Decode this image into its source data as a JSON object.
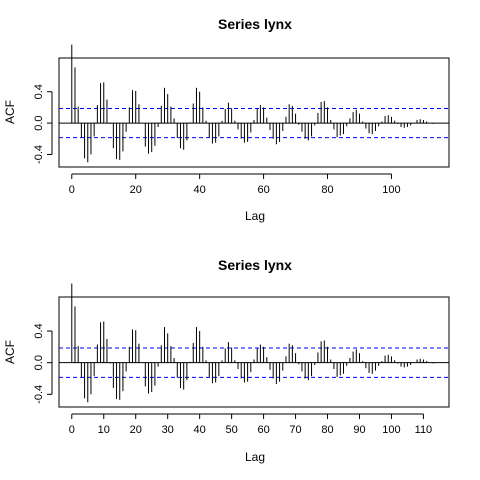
{
  "chart_data": [
    {
      "type": "bar",
      "title": "Series  lynx",
      "xlabel": "Lag",
      "ylabel": "ACF",
      "xlim": [
        -4,
        118
      ],
      "ylim": [
        -0.56,
        0.83
      ],
      "xticks": [
        0,
        20,
        40,
        60,
        80,
        100
      ],
      "yticks": [
        -0.4,
        0.0,
        0.4
      ],
      "ytick_labels": [
        "-0.4",
        "0.0",
        "0.4"
      ],
      "ci": 0.186,
      "ci_color": "#0000ff",
      "lags": [
        0,
        1,
        2,
        3,
        4,
        5,
        6,
        7,
        8,
        9,
        10,
        11,
        12,
        13,
        14,
        15,
        16,
        17,
        18,
        19,
        20,
        21,
        22,
        23,
        24,
        25,
        26,
        27,
        28,
        29,
        30,
        31,
        32,
        33,
        34,
        35,
        36,
        37,
        38,
        39,
        40,
        41,
        42,
        43,
        44,
        45,
        46,
        47,
        48,
        49,
        50,
        51,
        52,
        53,
        54,
        55,
        56,
        57,
        58,
        59,
        60,
        61,
        62,
        63,
        64,
        65,
        66,
        67,
        68,
        69,
        70,
        71,
        72,
        73,
        74,
        75,
        76,
        77,
        78,
        79,
        80,
        81,
        82,
        83,
        84,
        85,
        86,
        87,
        88,
        89,
        90,
        91,
        92,
        93,
        94,
        95,
        96,
        97,
        98,
        99,
        100,
        101,
        102,
        103,
        104,
        105,
        106,
        107,
        108,
        109,
        110,
        111,
        112,
        113
      ],
      "acf": [
        1.0,
        0.71,
        0.21,
        -0.18,
        -0.45,
        -0.5,
        -0.4,
        -0.17,
        0.23,
        0.51,
        0.52,
        0.3,
        -0.01,
        -0.32,
        -0.46,
        -0.47,
        -0.36,
        -0.11,
        0.2,
        0.42,
        0.41,
        0.24,
        0.0,
        -0.3,
        -0.39,
        -0.37,
        -0.29,
        -0.05,
        0.22,
        0.45,
        0.37,
        0.21,
        0.06,
        -0.19,
        -0.32,
        -0.34,
        -0.22,
        0.01,
        0.25,
        0.45,
        0.4,
        0.2,
        0.03,
        -0.18,
        -0.26,
        -0.25,
        -0.17,
        0.03,
        0.18,
        0.26,
        0.19,
        0.03,
        -0.08,
        -0.2,
        -0.25,
        -0.24,
        -0.12,
        0.04,
        0.18,
        0.23,
        0.2,
        0.07,
        -0.09,
        -0.2,
        -0.27,
        -0.24,
        -0.1,
        0.08,
        0.24,
        0.22,
        0.12,
        -0.02,
        -0.11,
        -0.2,
        -0.22,
        -0.17,
        -0.03,
        0.13,
        0.27,
        0.28,
        0.2,
        0.04,
        -0.08,
        -0.18,
        -0.16,
        -0.14,
        -0.04,
        0.06,
        0.14,
        0.17,
        0.12,
        0.02,
        -0.07,
        -0.13,
        -0.14,
        -0.1,
        -0.04,
        0.02,
        0.09,
        0.1,
        0.08,
        0.03,
        -0.01,
        -0.05,
        -0.06,
        -0.05,
        -0.03,
        0.0,
        0.04,
        0.05,
        0.04,
        0.02,
        0.0,
        -0.01
      ]
    },
    {
      "type": "bar",
      "title": "Series  lynx",
      "xlabel": "Lag",
      "ylabel": "ACF",
      "xlim": [
        -4,
        118
      ],
      "ylim": [
        -0.56,
        0.83
      ],
      "xticks": [
        0,
        10,
        20,
        30,
        40,
        50,
        60,
        70,
        80,
        90,
        100,
        110
      ],
      "yticks": [
        -0.4,
        0.0,
        0.4
      ],
      "ytick_labels": [
        "-0.4",
        "0.0",
        "0.4"
      ],
      "ci": 0.186,
      "ci_color": "#0000ff",
      "lags": [
        0,
        1,
        2,
        3,
        4,
        5,
        6,
        7,
        8,
        9,
        10,
        11,
        12,
        13,
        14,
        15,
        16,
        17,
        18,
        19,
        20,
        21,
        22,
        23,
        24,
        25,
        26,
        27,
        28,
        29,
        30,
        31,
        32,
        33,
        34,
        35,
        36,
        37,
        38,
        39,
        40,
        41,
        42,
        43,
        44,
        45,
        46,
        47,
        48,
        49,
        50,
        51,
        52,
        53,
        54,
        55,
        56,
        57,
        58,
        59,
        60,
        61,
        62,
        63,
        64,
        65,
        66,
        67,
        68,
        69,
        70,
        71,
        72,
        73,
        74,
        75,
        76,
        77,
        78,
        79,
        80,
        81,
        82,
        83,
        84,
        85,
        86,
        87,
        88,
        89,
        90,
        91,
        92,
        93,
        94,
        95,
        96,
        97,
        98,
        99,
        100,
        101,
        102,
        103,
        104,
        105,
        106,
        107,
        108,
        109,
        110,
        111,
        112,
        113
      ],
      "acf": [
        1.0,
        0.71,
        0.21,
        -0.18,
        -0.45,
        -0.5,
        -0.4,
        -0.17,
        0.23,
        0.51,
        0.52,
        0.3,
        -0.01,
        -0.32,
        -0.46,
        -0.47,
        -0.36,
        -0.11,
        0.2,
        0.42,
        0.41,
        0.24,
        0.0,
        -0.3,
        -0.39,
        -0.37,
        -0.29,
        -0.05,
        0.22,
        0.45,
        0.37,
        0.21,
        0.06,
        -0.19,
        -0.32,
        -0.34,
        -0.22,
        0.01,
        0.25,
        0.45,
        0.4,
        0.2,
        0.03,
        -0.18,
        -0.26,
        -0.25,
        -0.17,
        0.03,
        0.18,
        0.26,
        0.19,
        0.03,
        -0.08,
        -0.2,
        -0.25,
        -0.24,
        -0.12,
        0.04,
        0.18,
        0.23,
        0.2,
        0.07,
        -0.09,
        -0.2,
        -0.27,
        -0.24,
        -0.1,
        0.08,
        0.24,
        0.22,
        0.12,
        -0.02,
        -0.11,
        -0.2,
        -0.22,
        -0.17,
        -0.03,
        0.13,
        0.27,
        0.28,
        0.2,
        0.04,
        -0.08,
        -0.18,
        -0.16,
        -0.14,
        -0.04,
        0.06,
        0.14,
        0.17,
        0.12,
        0.02,
        -0.07,
        -0.13,
        -0.14,
        -0.1,
        -0.04,
        0.02,
        0.09,
        0.1,
        0.08,
        0.03,
        -0.01,
        -0.05,
        -0.06,
        -0.05,
        -0.03,
        0.0,
        0.04,
        0.05,
        0.04,
        0.02,
        0.0,
        -0.01
      ]
    }
  ]
}
